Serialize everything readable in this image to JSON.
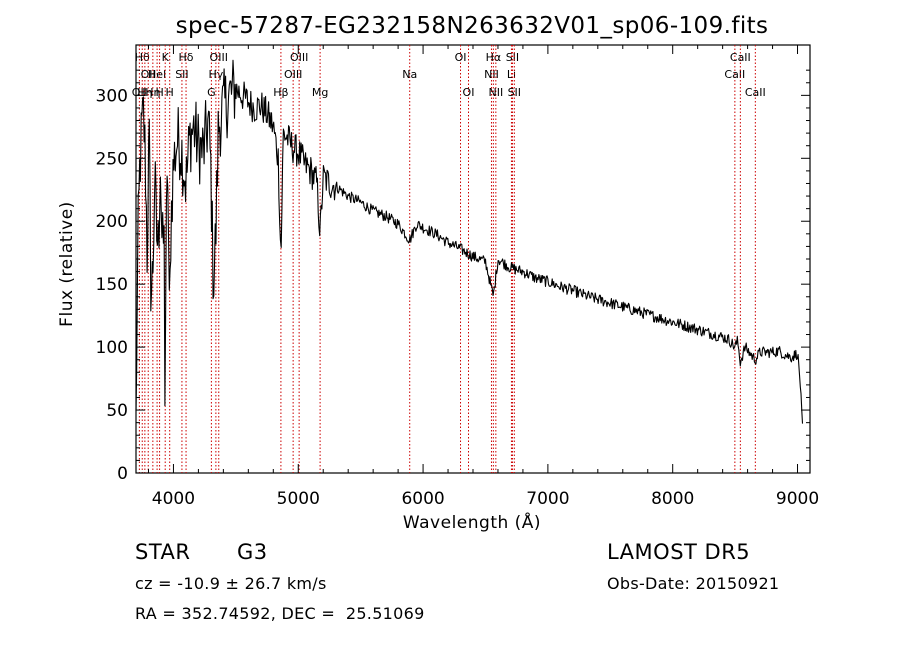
{
  "chart_data": {
    "type": "line",
    "title": "spec-57287-EG232158N263632V01_sp06-109.fits",
    "xlabel": "Wavelength (Å)",
    "ylabel": "Flux (relative)",
    "xlim": [
      3700,
      9100
    ],
    "ylim": [
      0,
      340
    ],
    "x_ticks": [
      4000,
      5000,
      6000,
      7000,
      8000,
      9000
    ],
    "y_ticks": [
      0,
      50,
      100,
      150,
      200,
      250,
      300
    ],
    "grid": false,
    "line_color": "#000000",
    "marker_color": "#cc0000",
    "series": [
      {
        "x": [
          3700,
          3715,
          3730,
          3745,
          3760,
          3775,
          3790,
          3805,
          3820,
          3835,
          3850,
          3865,
          3880,
          3895,
          3910,
          3925,
          3933,
          3940,
          3955,
          3968,
          3980,
          4000,
          4030,
          4060,
          4101,
          4130,
          4160,
          4200,
          4240,
          4280,
          4300,
          4320,
          4340,
          4360,
          4400,
          4450,
          4500,
          4550,
          4600,
          4650,
          4700,
          4750,
          4800,
          4840,
          4861,
          4880,
          4920,
          4960,
          5000,
          5050,
          5100,
          5150,
          5175,
          5200,
          5250,
          5300,
          5400,
          5500,
          5600,
          5700,
          5800,
          5893,
          5950,
          6000,
          6100,
          6200,
          6300,
          6400,
          6500,
          6563,
          6600,
          6700,
          6800,
          6900,
          7000,
          7100,
          7200,
          7300,
          7400,
          7500,
          7600,
          7700,
          7800,
          7900,
          8000,
          8100,
          8200,
          8300,
          8400,
          8450,
          8498,
          8520,
          8542,
          8580,
          8620,
          8662,
          8700,
          8750,
          8800,
          8850,
          8900,
          8950,
          9000,
          9020,
          9040
        ],
        "values": [
          40,
          180,
          240,
          270,
          285,
          250,
          170,
          275,
          140,
          160,
          235,
          190,
          180,
          250,
          175,
          190,
          40,
          180,
          240,
          115,
          200,
          245,
          265,
          260,
          230,
          265,
          275,
          260,
          255,
          280,
          240,
          150,
          190,
          275,
          290,
          300,
          305,
          300,
          295,
          290,
          292,
          285,
          275,
          250,
          170,
          270,
          265,
          258,
          255,
          245,
          240,
          230,
          190,
          235,
          230,
          228,
          220,
          215,
          208,
          204,
          198,
          185,
          198,
          195,
          190,
          183,
          178,
          172,
          168,
          140,
          170,
          163,
          160,
          155,
          152,
          148,
          145,
          141,
          138,
          135,
          132,
          129,
          126,
          123,
          120,
          117,
          114,
          111,
          108,
          106,
          100,
          105,
          88,
          100,
          95,
          90,
          96,
          96,
          96,
          97,
          94,
          92,
          95,
          75,
          35
        ]
      }
    ],
    "line_markers": [
      {
        "w": 3727,
        "label": "OII",
        "row": 2
      },
      {
        "w": 3750,
        "label": "Hθ",
        "row": 0
      },
      {
        "w": 3771,
        "label": "Hη",
        "row": 2
      },
      {
        "w": 3798,
        "label": "OII",
        "row": 1
      },
      {
        "w": 3835,
        "label": "Hη",
        "row": 2
      },
      {
        "w": 3869,
        "label": "HeI",
        "row": 1
      },
      {
        "w": 3889,
        "label": "H",
        "row": 2
      },
      {
        "w": 3934,
        "label": "K",
        "row": 0
      },
      {
        "w": 3970,
        "label": "H",
        "row": 2
      },
      {
        "w": 4068,
        "label": "SII",
        "row": 1
      },
      {
        "w": 4101,
        "label": "Hδ",
        "row": 0
      },
      {
        "w": 4304,
        "label": "G",
        "row": 2
      },
      {
        "w": 4340,
        "label": "Hγ",
        "row": 1
      },
      {
        "w": 4363,
        "label": "OIII",
        "row": 0
      },
      {
        "w": 4861,
        "label": "Hβ",
        "row": 2
      },
      {
        "w": 4959,
        "label": "OIII",
        "row": 1
      },
      {
        "w": 5007,
        "label": "OIII",
        "row": 0
      },
      {
        "w": 5175,
        "label": "Mg",
        "row": 2
      },
      {
        "w": 5893,
        "label": "Na",
        "row": 1
      },
      {
        "w": 6300,
        "label": "OI",
        "row": 0
      },
      {
        "w": 6364,
        "label": "OI",
        "row": 2
      },
      {
        "w": 6548,
        "label": "NII",
        "row": 1
      },
      {
        "w": 6563,
        "label": "Hα",
        "row": 0
      },
      {
        "w": 6583,
        "label": "NII",
        "row": 2
      },
      {
        "w": 6708,
        "label": "Li",
        "row": 1
      },
      {
        "w": 6716,
        "label": "SII",
        "row": 0
      },
      {
        "w": 6731,
        "label": "SII",
        "row": 2
      },
      {
        "w": 8498,
        "label": "CaII",
        "row": 1
      },
      {
        "w": 8542,
        "label": "CaII",
        "row": 0
      },
      {
        "w": 8662,
        "label": "CaII",
        "row": 2
      }
    ]
  },
  "info": {
    "class_label": "STAR",
    "subclass": "G3",
    "survey": "LAMOST DR5",
    "cz": "cz = -10.9 ± 26.7 km/s",
    "obs_date": "Obs-Date: 20150921",
    "coords": "RA = 352.74592, DEC =  25.51069"
  }
}
